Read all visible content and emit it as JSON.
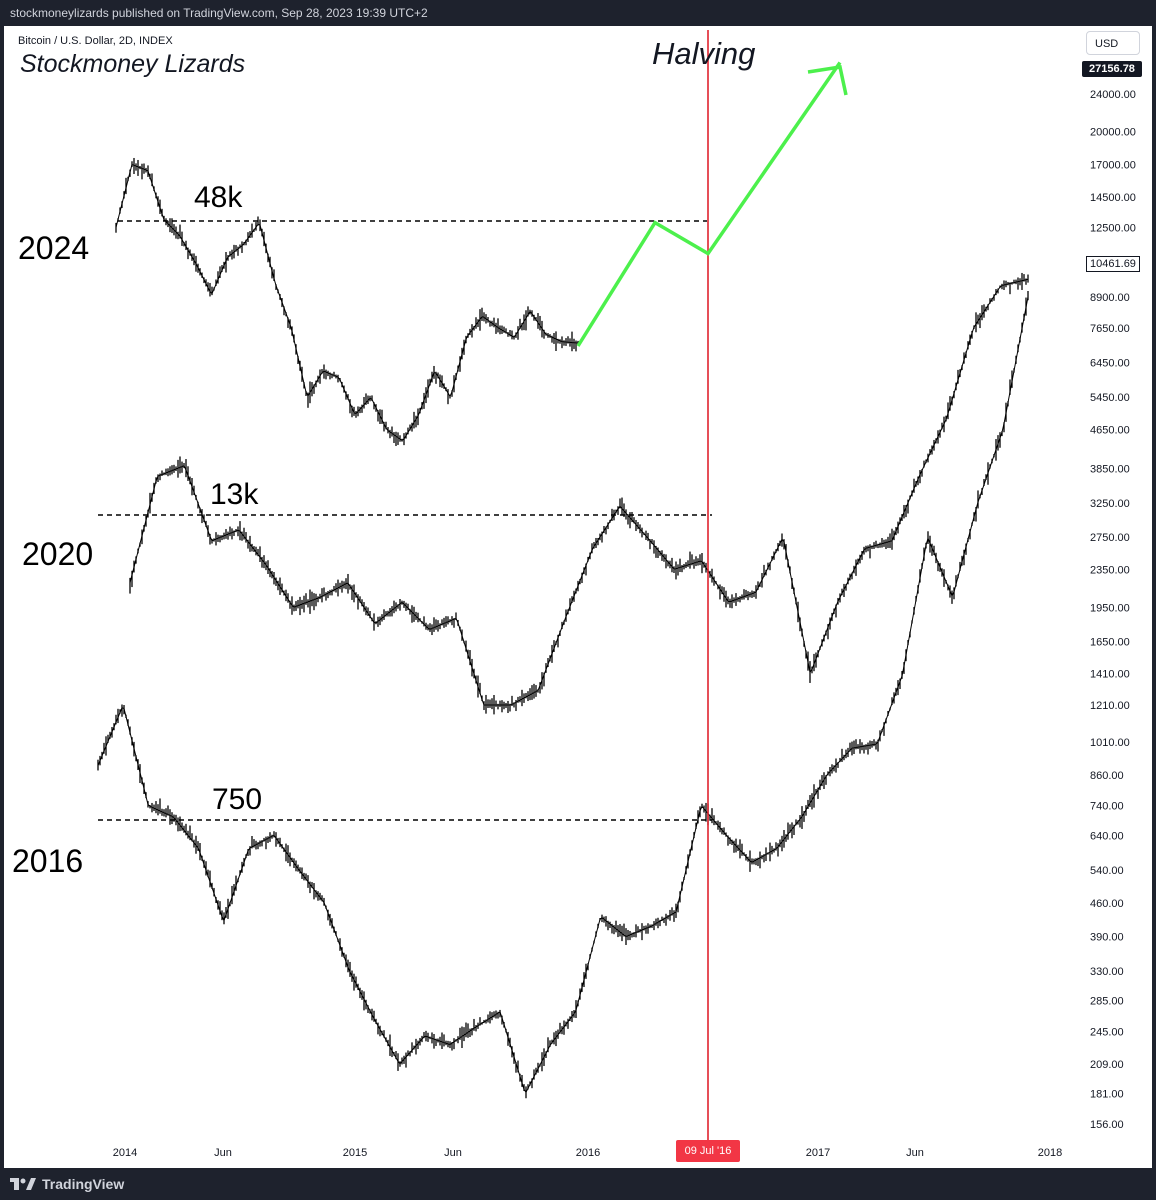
{
  "header": {
    "publish_text": "stockmoneylizards published on TradingView.com, Sep 28, 2023 19:39 UTC+2",
    "symbol_line": "Bitcoin / U.S. Dollar, 2D, INDEX",
    "brand": "Stockmoney Lizards",
    "halving_label": "Halving",
    "currency_button": "USD",
    "last_price": "27156.78",
    "secondary_price": "10461.69"
  },
  "footer": {
    "logo_text": "TradingView"
  },
  "colors": {
    "halving_line": "#e0232e",
    "projection": "#4cf04c",
    "candles": "#000000",
    "date_tag": "#f23645"
  },
  "chart_data": {
    "type": "line",
    "title": "",
    "xlabel": "",
    "ylabel": "",
    "scale": "log",
    "x_ticks": [
      "2014",
      "Jun",
      "2015",
      "Jun",
      "2016",
      "09 Jul '16",
      "2017",
      "Jun",
      "2018"
    ],
    "y_ticks": [
      "24000.00",
      "20000.00",
      "17000.00",
      "14500.00",
      "12500.00",
      "10461.69",
      "8900.00",
      "7650.00",
      "6450.00",
      "5450.00",
      "4650.00",
      "3850.00",
      "3250.00",
      "2750.00",
      "2350.00",
      "1950.00",
      "1650.00",
      "1410.00",
      "1210.00",
      "1010.00",
      "860.00",
      "740.00",
      "640.00",
      "540.00",
      "460.00",
      "390.00",
      "330.00",
      "285.00",
      "245.00",
      "209.00",
      "181.00",
      "156.00"
    ],
    "overlay_labels": {
      "cycle_2024": "2024",
      "cycle_2020": "2020",
      "cycle_2016": "2016",
      "level_2024": "48k",
      "level_2020": "13k",
      "level_2016": "750"
    },
    "halving_marker": "09 Jul '16",
    "series": [
      {
        "values": [
          12500,
          17000,
          16500,
          13000,
          12000,
          10500,
          9000,
          10800,
          11500,
          12800,
          9500,
          7650,
          5450,
          6200,
          6000,
          5000,
          5450,
          4650,
          4400,
          5000,
          6200,
          5450,
          7300,
          8100,
          7650,
          7300,
          8300,
          7400,
          7150,
          7100
        ]
      },
      {
        "values": [
          2200,
          3700,
          3900,
          2700,
          2850,
          2400,
          1950,
          2050,
          2200,
          1800,
          2000,
          1750,
          1850,
          1210,
          1210,
          1300,
          1850,
          2600,
          3200,
          2750,
          2350,
          2450,
          2000,
          2100,
          2750,
          1410,
          2000,
          2600,
          2700,
          3700,
          4900,
          7650,
          9400,
          9700
        ]
      },
      {
        "values": [
          900,
          1210,
          740,
          700,
          600,
          420,
          600,
          640,
          540,
          460,
          330,
          260,
          209,
          240,
          230,
          250,
          270,
          181,
          230,
          270,
          430,
          390,
          410,
          440,
          740,
          640,
          560,
          600,
          700,
          860,
          980,
          1000,
          1400,
          2750,
          2050,
          3250,
          4650,
          8900
        ]
      },
      {
        "values": [
          7000,
          12800,
          11000,
          28000
        ]
      }
    ]
  }
}
